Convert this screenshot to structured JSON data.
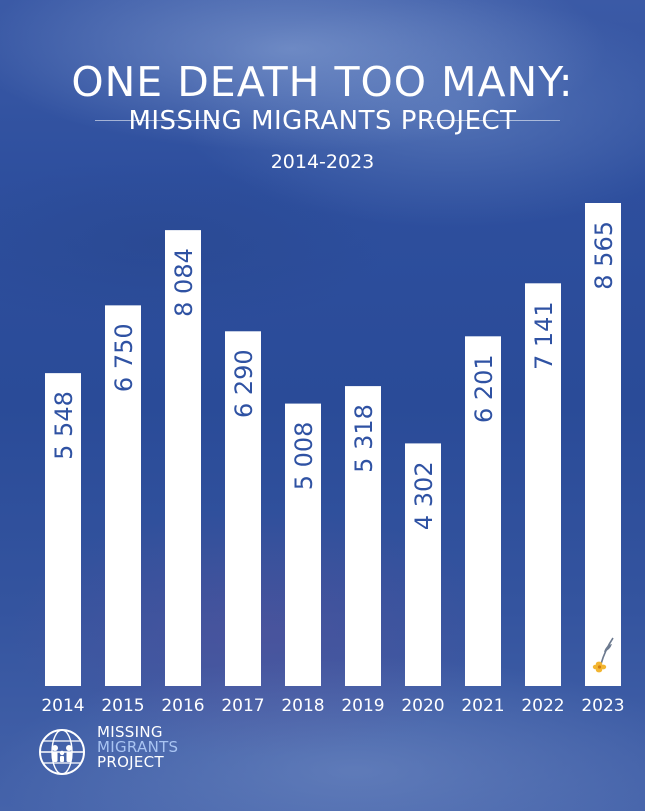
{
  "header": {
    "title": "ONE DEATH TOO MANY:",
    "subtitle": "MISSING MIGRANTS PROJECT",
    "period": "2014-2023"
  },
  "logo": {
    "line1": "MISSING",
    "line2": "MIGRANTS",
    "line3": "PROJECT",
    "icon": "iom-globe-family-icon",
    "line2_color": "#a9c4f2"
  },
  "colors": {
    "background": "#2e4f9e",
    "bar": "#ffffff",
    "bar_label": "#2f52a3",
    "flower": "#f2b531"
  },
  "chart_data": {
    "type": "bar",
    "title": "ONE DEATH TOO MANY:",
    "categories": [
      "2014",
      "2015",
      "2016",
      "2017",
      "2018",
      "2019",
      "2020",
      "2021",
      "2022",
      "2023"
    ],
    "values": [
      5548,
      6750,
      8084,
      6290,
      5008,
      5318,
      4302,
      6201,
      7141,
      8565
    ],
    "value_labels": [
      "5 548",
      "6 750",
      "8 084",
      "6 290",
      "5 008",
      "5 318",
      "4 302",
      "6 201",
      "7 141",
      "8 565"
    ],
    "xlabel": "",
    "ylabel": "",
    "ylim": [
      0,
      8565
    ],
    "grid": false,
    "legend": "none",
    "annotations": [
      "flower-icon on 2023 bar"
    ]
  }
}
